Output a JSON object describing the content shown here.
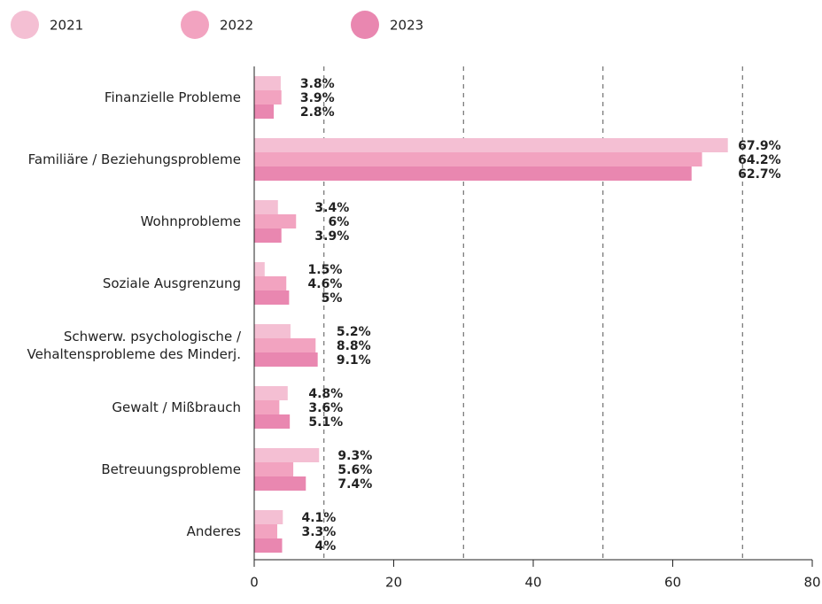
{
  "chart_data": {
    "type": "hbar",
    "categories": [
      "Finanzielle Probleme",
      "Familiäre / Beziehungsprobleme",
      "Wohnprobleme",
      "Soziale Ausgrenzung",
      "Schwerw. psychologische /\nVehaltensprobleme des Minderj.",
      "Gewalt / Mißbrauch",
      "Betreuungsprobleme",
      "Anderes"
    ],
    "series": [
      {
        "name": "2021",
        "color": "#f4bfd3",
        "values": [
          3.8,
          67.9,
          3.4,
          1.5,
          5.2,
          4.8,
          9.3,
          4.1
        ],
        "value_labels": [
          "3.8%",
          "67.9%",
          "3.4%",
          "1.5%",
          "5.2%",
          "4.8%",
          "9.3%",
          "4.1%"
        ]
      },
      {
        "name": "2022",
        "color": "#f2a3c0",
        "values": [
          3.9,
          64.2,
          6,
          4.6,
          8.8,
          3.6,
          5.6,
          3.3
        ],
        "value_labels": [
          "3.9%",
          "64.2%",
          "6%",
          "4.6%",
          "8.8%",
          "3.6%",
          "5.6%",
          "3.3%"
        ]
      },
      {
        "name": "2023",
        "color": "#e987b0",
        "values": [
          2.8,
          62.7,
          3.9,
          5,
          9.1,
          5.1,
          7.4,
          4
        ],
        "value_labels": [
          "2.8%",
          "62.7%",
          "3.9%",
          "5%",
          "9.1%",
          "5.1%",
          "7.4%",
          "4%"
        ]
      }
    ],
    "xlim": [
      0,
      80
    ],
    "xticks": [
      0,
      20,
      40,
      60,
      80
    ],
    "grid_lines": [
      10,
      30,
      50,
      70
    ],
    "legend": "top"
  }
}
